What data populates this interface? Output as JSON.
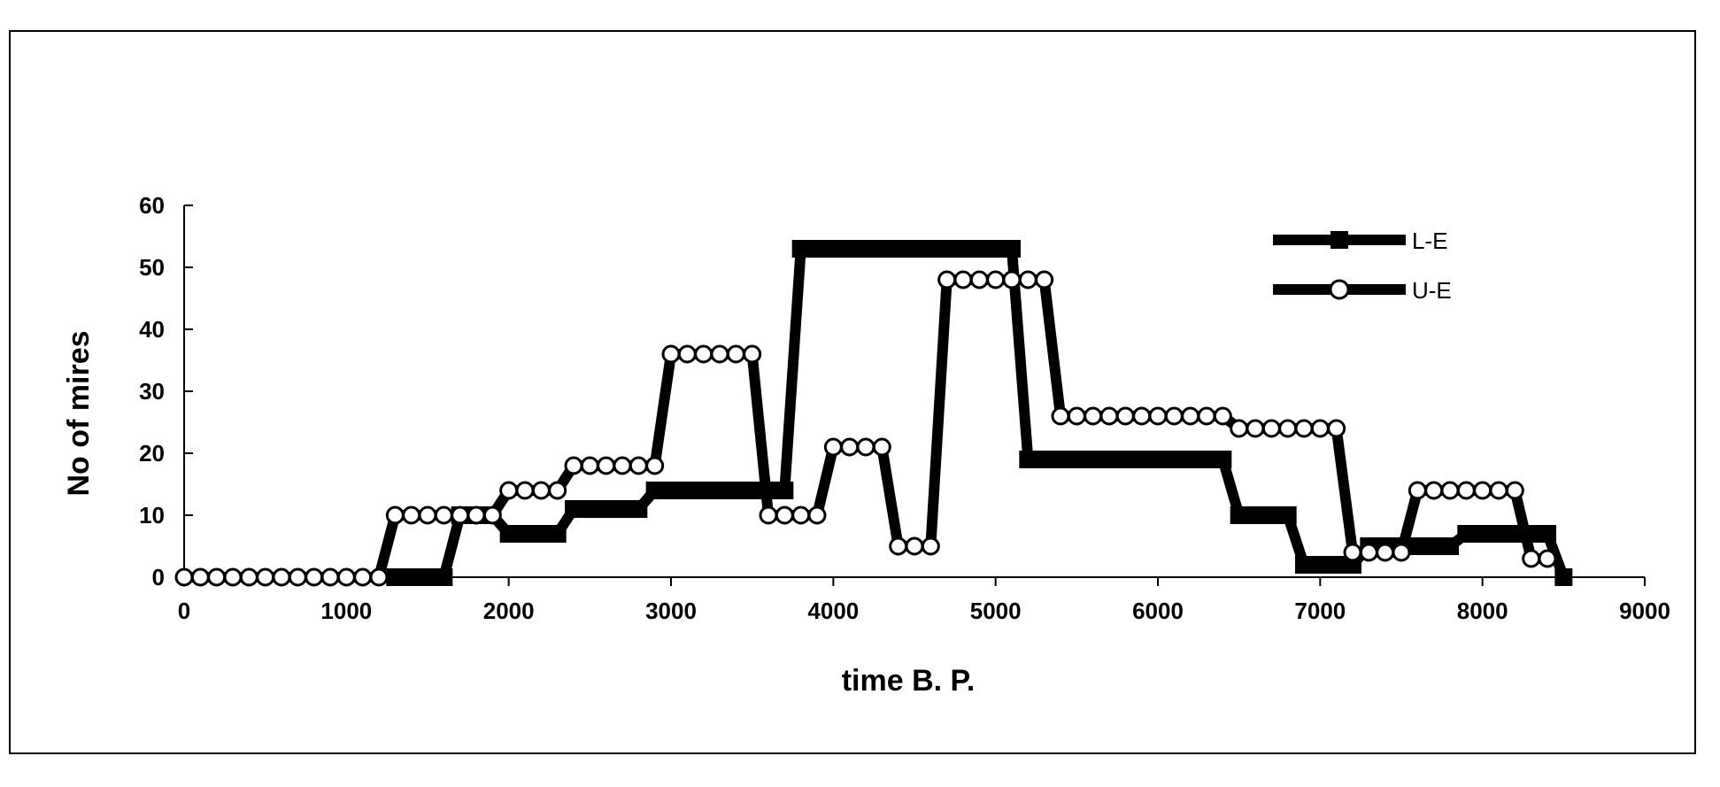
{
  "chart_data": {
    "type": "line",
    "xlabel": "time B. P.",
    "ylabel": "No of mires",
    "xlim": [
      0,
      9000
    ],
    "ylim": [
      0,
      60
    ],
    "xticks": [
      0,
      1000,
      2000,
      3000,
      4000,
      5000,
      6000,
      7000,
      8000,
      9000
    ],
    "yticks": [
      0,
      10,
      20,
      30,
      40,
      50,
      60
    ],
    "legend_position": "top-right",
    "series": [
      {
        "name": "L-E",
        "marker": "filled-square",
        "color": "#000000",
        "x": [
          1300,
          1400,
          1500,
          1600,
          1700,
          1800,
          1900,
          2000,
          2100,
          2200,
          2300,
          2400,
          2500,
          2600,
          2700,
          2800,
          2900,
          3000,
          3100,
          3200,
          3300,
          3400,
          3500,
          3600,
          3700,
          3800,
          3900,
          4000,
          4100,
          4200,
          4300,
          4400,
          4500,
          4600,
          4700,
          4800,
          4900,
          5000,
          5100,
          5200,
          5300,
          5400,
          5500,
          5600,
          5700,
          5800,
          5900,
          6000,
          6100,
          6200,
          6300,
          6400,
          6500,
          6600,
          6700,
          6800,
          6900,
          7000,
          7100,
          7200,
          7300,
          7400,
          7500,
          7600,
          7700,
          7800,
          7900,
          8000,
          8100,
          8200,
          8300,
          8400,
          8500
        ],
        "y": [
          0,
          0,
          0,
          0,
          10,
          10,
          10,
          7,
          7,
          7,
          7,
          11,
          11,
          11,
          11,
          11,
          14,
          14,
          14,
          14,
          14,
          14,
          14,
          14,
          14,
          53,
          53,
          53,
          53,
          53,
          53,
          53,
          53,
          53,
          53,
          53,
          53,
          53,
          53,
          19,
          19,
          19,
          19,
          19,
          19,
          19,
          19,
          19,
          19,
          19,
          19,
          19,
          10,
          10,
          10,
          10,
          2,
          2,
          2,
          2,
          5,
          5,
          5,
          5,
          5,
          5,
          7,
          7,
          7,
          7,
          7,
          7,
          0
        ]
      },
      {
        "name": "U-E",
        "marker": "open-circle",
        "color": "#000000",
        "x": [
          0,
          100,
          200,
          300,
          400,
          500,
          600,
          700,
          800,
          900,
          1000,
          1100,
          1200,
          1300,
          1400,
          1500,
          1600,
          1700,
          1800,
          1900,
          2000,
          2100,
          2200,
          2300,
          2400,
          2500,
          2600,
          2700,
          2800,
          2900,
          3000,
          3100,
          3200,
          3300,
          3400,
          3500,
          3600,
          3700,
          3800,
          3900,
          4000,
          4100,
          4200,
          4300,
          4400,
          4500,
          4600,
          4700,
          4800,
          4900,
          5000,
          5100,
          5200,
          5300,
          5400,
          5500,
          5600,
          5700,
          5800,
          5900,
          6000,
          6100,
          6200,
          6300,
          6400,
          6500,
          6600,
          6700,
          6800,
          6900,
          7000,
          7100,
          7200,
          7300,
          7400,
          7500,
          7600,
          7700,
          7800,
          7900,
          8000,
          8100,
          8200,
          8300,
          8400
        ],
        "y": [
          0,
          0,
          0,
          0,
          0,
          0,
          0,
          0,
          0,
          0,
          0,
          0,
          0,
          10,
          10,
          10,
          10,
          10,
          10,
          10,
          14,
          14,
          14,
          14,
          18,
          18,
          18,
          18,
          18,
          18,
          36,
          36,
          36,
          36,
          36,
          36,
          10,
          10,
          10,
          10,
          21,
          21,
          21,
          21,
          5,
          5,
          5,
          48,
          48,
          48,
          48,
          48,
          48,
          48,
          26,
          26,
          26,
          26,
          26,
          26,
          26,
          26,
          26,
          26,
          26,
          24,
          24,
          24,
          24,
          24,
          24,
          24,
          4,
          4,
          4,
          4,
          14,
          14,
          14,
          14,
          14,
          14,
          14,
          3,
          3
        ]
      }
    ]
  }
}
